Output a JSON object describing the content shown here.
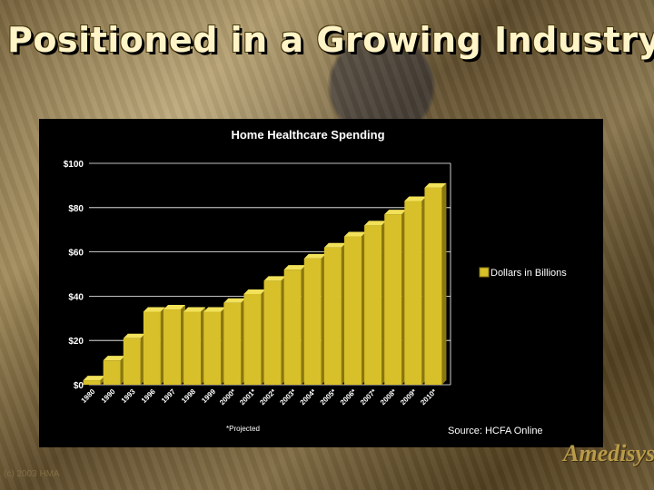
{
  "slide": {
    "title": "Positioned in a Growing Industry",
    "copyright": "(c) 2003 HMA",
    "logo_text": "Amedisys"
  },
  "chart_data": {
    "type": "bar",
    "title": "Home Healthcare Spending",
    "categories": [
      "1980",
      "1990",
      "1993",
      "1996",
      "1997",
      "1998",
      "1999",
      "2000*",
      "2001*",
      "2002*",
      "2003*",
      "2004*",
      "2005*",
      "2006*",
      "2007*",
      "2008*",
      "2009*",
      "2010*"
    ],
    "series": [
      {
        "name": "Dollars in Billions",
        "values": [
          2,
          11,
          21,
          33,
          34,
          33,
          33,
          37,
          41,
          47,
          52,
          57,
          62,
          67,
          72,
          77,
          83,
          89
        ]
      }
    ],
    "ylim": [
      0,
      100
    ],
    "yticks": [
      0,
      20,
      40,
      60,
      80,
      100
    ],
    "ytick_labels": [
      "$0",
      "$20",
      "$40",
      "$60",
      "$80",
      "$100"
    ],
    "grid": true,
    "legend_position": "right",
    "footnote": "*Projected",
    "source": "Source: HCFA Online",
    "colors": {
      "bar_fill": "#d8c02a",
      "bar_top": "#f2e25a",
      "bar_side": "#8a7710",
      "background": "#000000",
      "grid": "#ffffff",
      "text": "#ffffff"
    }
  }
}
